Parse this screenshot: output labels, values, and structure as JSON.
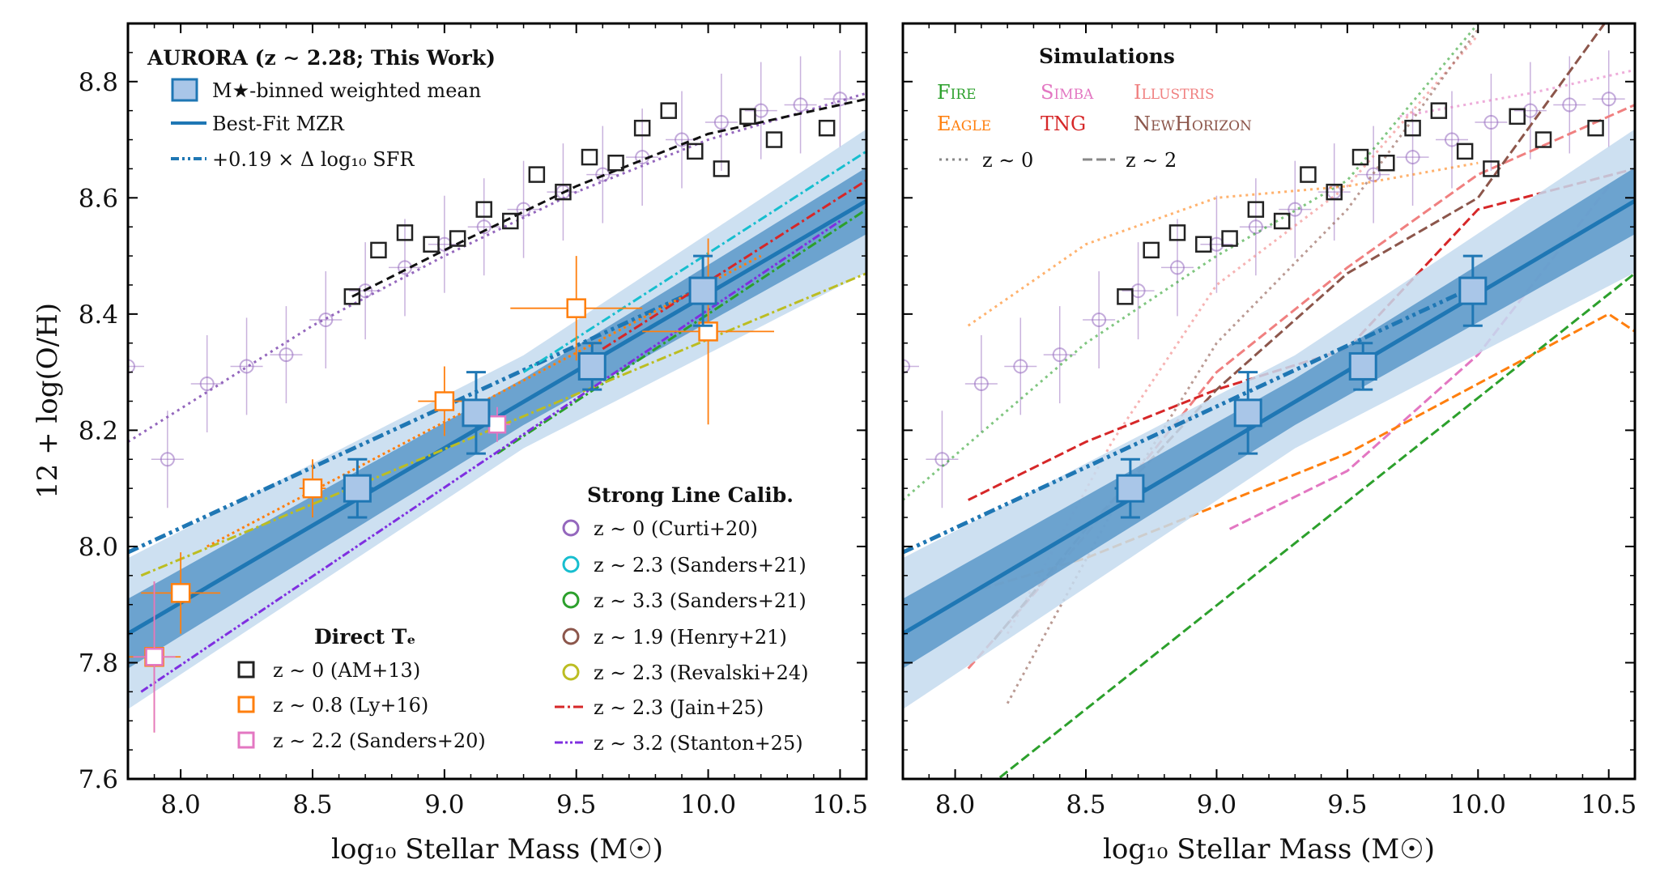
{
  "figure": {
    "y_axis_label": "12 + log(O/H)",
    "panels": [
      "left",
      "right"
    ]
  },
  "colors": {
    "aurora": "#1f77b4",
    "aurora_fill": "#a9c6e8",
    "band_inner": "#5b98c9",
    "band_outer": "#c4daee",
    "am13": "#222222",
    "ly16": "#ff7f0e",
    "sanders20": "#e377c2",
    "curti20": "#9467bd",
    "sanders21_23": "#17becf",
    "sanders21_33": "#2ca02c",
    "henry21": "#8c564b",
    "revalski24": "#bcbd22",
    "jain25": "#d62728",
    "stanton25": "#7f2fe0",
    "fire": "#2ca02c",
    "simba": "#e377c2",
    "illustris": "#f08080",
    "eagle": "#ff7f0e",
    "tng": "#d62728",
    "newhorizon": "#8c564b",
    "am13_fit": "#111111"
  },
  "chart_data": [
    {
      "id": "left",
      "type": "scatter",
      "xlabel": "log₁₀ Stellar Mass (M☉)",
      "ylabel": "12 + log(O/H)",
      "xlim": [
        7.8,
        10.6
      ],
      "ylim": [
        7.6,
        8.9
      ],
      "xticks": [
        8.0,
        8.5,
        9.0,
        9.5,
        10.0,
        10.5
      ],
      "xtick_labels": [
        "8.0",
        "8.5",
        "9.0",
        "9.5",
        "10.0",
        "10.5"
      ],
      "yticks": [
        7.6,
        7.8,
        8.0,
        8.2,
        8.4,
        8.6,
        8.8
      ],
      "ytick_labels": [
        "7.6",
        "7.8",
        "8.0",
        "8.2",
        "8.4",
        "8.6",
        "8.8"
      ],
      "legends": [
        {
          "title": "AURORA (z ∼ 2.28; This Work)",
          "position": "top-left",
          "entries": [
            {
              "key": "aurora_points",
              "label": "M★-binned weighted mean"
            },
            {
              "key": "best_fit",
              "label": "Best-Fit MZR"
            },
            {
              "key": "sfr_shift",
              "label": "+0.19 × Δ log₁₀ SFR"
            }
          ]
        },
        {
          "title": "Direct Tₑ",
          "position": "bottom-center",
          "entries": [
            {
              "key": "am13",
              "label": "z ∼ 0 (AM+13)"
            },
            {
              "key": "ly16",
              "label": "z ∼ 0.8 (Ly+16)"
            },
            {
              "key": "sanders20",
              "label": "z ∼ 2.2 (Sanders+20)"
            }
          ]
        },
        {
          "title": "Strong Line Calib.",
          "position": "bottom-right",
          "entries": [
            {
              "key": "curti20",
              "label": "z ∼ 0 (Curti+20)"
            },
            {
              "key": "sanders21_23",
              "label": "z ∼ 2.3 (Sanders+21)"
            },
            {
              "key": "sanders21_33",
              "label": "z ∼ 3.3 (Sanders+21)"
            },
            {
              "key": "henry21",
              "label": "z ∼ 1.9 (Henry+21)"
            },
            {
              "key": "revalski24",
              "label": "z ∼ 2.3 (Revalski+24)"
            },
            {
              "key": "jain25",
              "label": "z ∼ 2.3 (Jain+25)"
            },
            {
              "key": "stanton25",
              "label": "z ∼ 3.2 (Stanton+25)"
            }
          ]
        }
      ],
      "aurora_points": {
        "x": [
          8.67,
          9.12,
          9.56,
          9.98
        ],
        "y": [
          8.1,
          8.23,
          8.31,
          8.44
        ],
        "yerr": [
          0.05,
          0.07,
          0.04,
          0.06
        ],
        "xerr": [
          0.06,
          0.05,
          0.04,
          0.05
        ]
      },
      "best_fit": {
        "slope": 0.266,
        "intercept": 7.85,
        "x0": 7.8,
        "x_range": [
          7.8,
          10.6
        ],
        "band_inner": [
          0.04,
          0.06
        ],
        "band_outer": [
          0.08,
          0.13
        ]
      },
      "sfr_shift": {
        "x": [
          7.8,
          10.0
        ],
        "y": [
          7.99,
          8.45
        ]
      },
      "am13": {
        "x": [
          8.65,
          8.75,
          8.85,
          8.95,
          9.05,
          9.15,
          9.25,
          9.35,
          9.45,
          9.55,
          9.65,
          9.75,
          9.85,
          9.95,
          10.05,
          10.15,
          10.25,
          10.45
        ],
        "y": [
          8.43,
          8.51,
          8.54,
          8.52,
          8.53,
          8.58,
          8.56,
          8.64,
          8.61,
          8.67,
          8.66,
          8.72,
          8.75,
          8.68,
          8.65,
          8.74,
          8.7,
          8.72
        ]
      },
      "am13_fit": {
        "x": [
          8.65,
          9.0,
          9.5,
          10.0,
          10.6
        ],
        "y": [
          8.43,
          8.51,
          8.62,
          8.71,
          8.77
        ]
      },
      "curti20": {
        "x": [
          7.8,
          7.95,
          8.1,
          8.25,
          8.4,
          8.55,
          8.7,
          8.85,
          9.0,
          9.15,
          9.3,
          9.45,
          9.6,
          9.75,
          9.9,
          10.05,
          10.2,
          10.35,
          10.5
        ],
        "y": [
          8.31,
          8.15,
          8.28,
          8.31,
          8.33,
          8.39,
          8.44,
          8.48,
          8.52,
          8.55,
          8.58,
          8.61,
          8.64,
          8.67,
          8.7,
          8.73,
          8.75,
          8.76,
          8.77
        ]
      },
      "curti20_fit": {
        "x": [
          7.8,
          8.5,
          9.0,
          9.5,
          10.0,
          10.6
        ],
        "y": [
          8.18,
          8.38,
          8.5,
          8.61,
          8.7,
          8.78
        ]
      },
      "ly16": {
        "x": [
          7.9,
          8.0,
          8.5,
          9.0,
          9.5,
          10.0
        ],
        "y": [
          7.81,
          7.92,
          8.1,
          8.25,
          8.41,
          8.37
        ],
        "xerr": [
          0.1,
          0.15,
          0.05,
          0.1,
          0.25,
          0.25
        ],
        "yerr": [
          0.13,
          0.07,
          0.05,
          0.06,
          0.09,
          0.16
        ]
      },
      "sanders20": {
        "x": [
          7.9,
          9.2
        ],
        "y": [
          7.81,
          8.21
        ],
        "xerr": [
          0.08,
          0.05
        ],
        "yerr": [
          0.13,
          0.03
        ]
      },
      "sanders21_23": {
        "x": [
          9.3,
          9.6,
          9.9,
          10.22
        ]
      },
      "sanders21_33": {
        "x": [
          9.2,
          9.8
        ]
      },
      "henry21": {
        "x": [
          8.25,
          8.8
        ]
      },
      "revalski24": {
        "x": [
          8.1,
          8.6,
          9.0,
          10.3
        ]
      },
      "jain25": {
        "x": [
          9.6,
          10.6
        ]
      },
      "stanton25": {
        "x": [
          7.9,
          10.5
        ]
      }
    },
    {
      "id": "right",
      "type": "line",
      "xlabel": "log₁₀ Stellar Mass (M☉)",
      "xlim": [
        7.8,
        10.6
      ],
      "ylim": [
        7.6,
        8.9
      ],
      "xticks": [
        8.0,
        8.5,
        9.0,
        9.5,
        10.0,
        10.5
      ],
      "xtick_labels": [
        "8.0",
        "8.5",
        "9.0",
        "9.5",
        "10.0",
        "10.5"
      ],
      "legend": {
        "title": "Simulations",
        "position": "top-center",
        "entries": [
          {
            "key": "fire",
            "label": "Fire"
          },
          {
            "key": "simba",
            "label": "Simba"
          },
          {
            "key": "illustris",
            "label": "Illustris"
          },
          {
            "key": "eagle",
            "label": "Eagle"
          },
          {
            "key": "tng",
            "label": "TNG"
          },
          {
            "key": "newhorizon",
            "label": "NewHorizon"
          }
        ],
        "style_entries": [
          {
            "key": "z0",
            "label": "z ∼ 0"
          },
          {
            "key": "z2",
            "label": "z ∼ 2"
          }
        ]
      },
      "sims": [
        {
          "name": "fire",
          "style": "z2",
          "x": [
            7.8,
            10.6
          ],
          "y": [
            7.47,
            8.47
          ]
        },
        {
          "name": "fire",
          "style": "z0",
          "x": [
            7.8,
            8.5,
            9.0,
            9.5,
            10.0
          ],
          "y": [
            8.08,
            8.35,
            8.5,
            8.63,
            8.9
          ]
        },
        {
          "name": "simba",
          "style": "z2",
          "x": [
            9.05,
            9.5,
            10.0,
            10.5
          ],
          "y": [
            8.03,
            8.13,
            8.33,
            8.62
          ]
        },
        {
          "name": "simba",
          "style": "z0",
          "x": [
            9.7,
            10.2,
            10.6
          ],
          "y": [
            8.74,
            8.78,
            8.82
          ]
        },
        {
          "name": "illustris",
          "style": "z2",
          "x": [
            8.05,
            8.5,
            9.0,
            9.5,
            10.0,
            10.6
          ],
          "y": [
            7.79,
            8.02,
            8.3,
            8.48,
            8.64,
            8.76
          ]
        },
        {
          "name": "illustris",
          "style": "z0",
          "x": [
            8.2,
            8.6,
            9.0,
            9.5,
            10.0
          ],
          "y": [
            7.85,
            8.18,
            8.45,
            8.62,
            8.88
          ]
        },
        {
          "name": "eagle",
          "style": "z2",
          "x": [
            8.05,
            8.5,
            9.0,
            9.5,
            10.0,
            10.5,
            10.6
          ],
          "y": [
            7.92,
            7.98,
            8.07,
            8.16,
            8.28,
            8.4,
            8.37
          ]
        },
        {
          "name": "eagle",
          "style": "z0",
          "x": [
            8.05,
            8.5,
            9.0,
            9.5,
            10.0
          ],
          "y": [
            8.38,
            8.52,
            8.6,
            8.62,
            8.66
          ]
        },
        {
          "name": "tng",
          "style": "z2",
          "x": [
            8.05,
            8.5,
            9.0,
            9.5,
            10.0,
            10.6
          ],
          "y": [
            8.08,
            8.18,
            8.27,
            8.34,
            8.58,
            8.65
          ]
        },
        {
          "name": "newhorizon",
          "style": "z2",
          "x": [
            8.15,
            8.5,
            9.0,
            9.5,
            10.0,
            10.5
          ],
          "y": [
            7.84,
            8.03,
            8.27,
            8.47,
            8.6,
            8.91
          ]
        },
        {
          "name": "newhorizon",
          "style": "z0",
          "x": [
            8.2,
            8.6,
            9.0,
            9.5,
            10.0
          ],
          "y": [
            7.73,
            8.06,
            8.35,
            8.58,
            8.89
          ]
        }
      ]
    }
  ]
}
